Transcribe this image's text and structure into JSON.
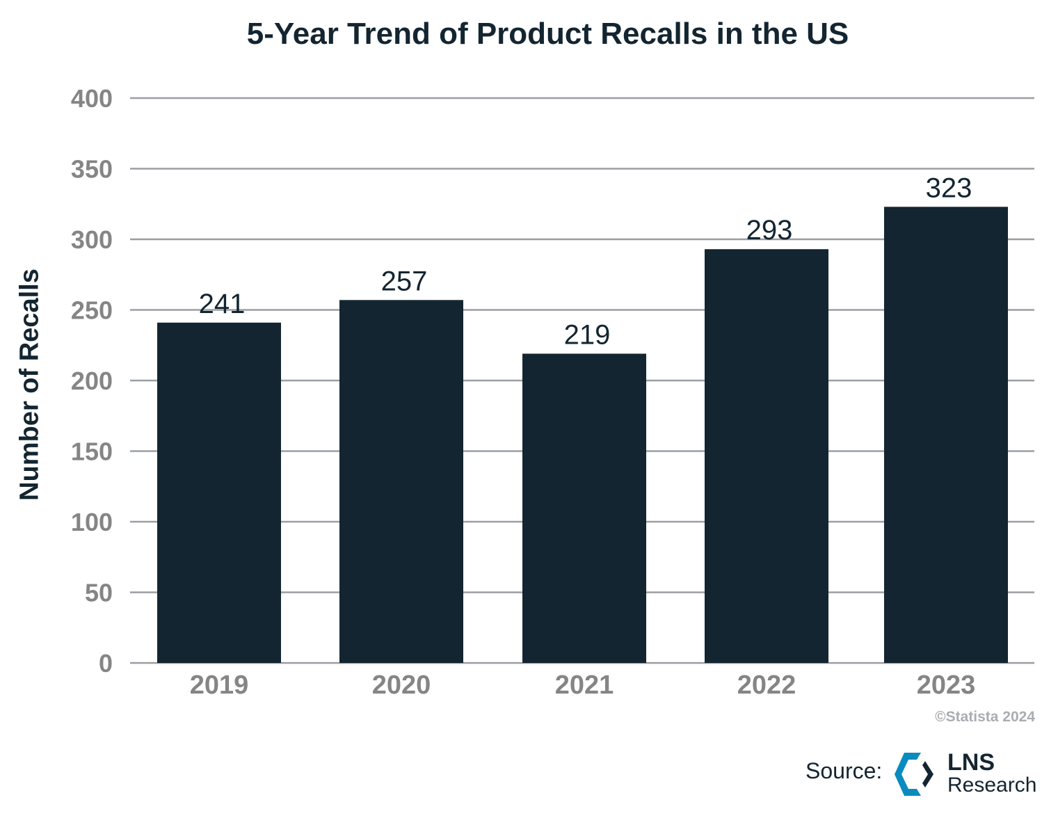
{
  "chart_data": {
    "type": "bar",
    "title": "5-Year Trend of Product Recalls in the US",
    "xlabel": "",
    "ylabel": "Number of Recalls",
    "categories": [
      "2019",
      "2020",
      "2021",
      "2022",
      "2023"
    ],
    "values": [
      241,
      257,
      219,
      293,
      323
    ],
    "ylim": [
      0,
      400
    ],
    "yticks": [
      0,
      50,
      100,
      150,
      200,
      250,
      300,
      350,
      400
    ],
    "grid": true,
    "data_labels": true,
    "colors": {
      "bar": "#132530",
      "grid": "#9a9ea3",
      "tick_text": "#858585"
    }
  },
  "footer": {
    "copyright": "©Statista 2024",
    "source_label": "Source:",
    "logo_text": {
      "line1": "LNS",
      "line2": "Research"
    },
    "logo_colors": {
      "blue": "#0a8bc0",
      "dark": "#132530"
    }
  }
}
